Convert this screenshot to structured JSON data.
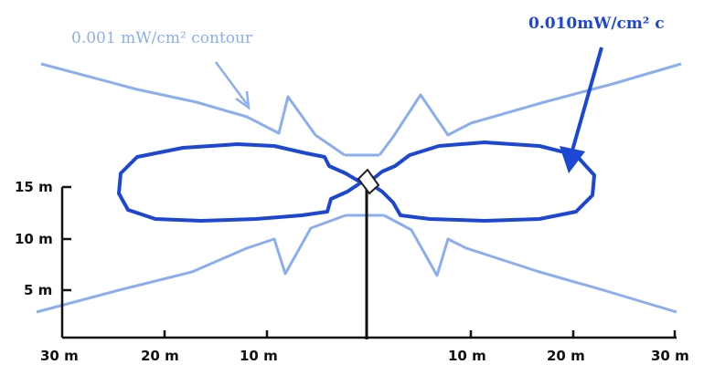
{
  "labels": {
    "contour_low": "0.001 mW/cm² contour",
    "contour_high": "0.010mW/cm² c"
  },
  "y_ticks": [
    "15 m",
    "10 m",
    "5 m"
  ],
  "x_ticks": [
    "30 m",
    "20 m",
    "10 m",
    "10 m",
    "20 m",
    "30 m"
  ],
  "colors": {
    "contour_low": "#8aaef0",
    "contour_high": "#1b47d4",
    "axis": "#111111",
    "background": "#ffffff"
  }
}
